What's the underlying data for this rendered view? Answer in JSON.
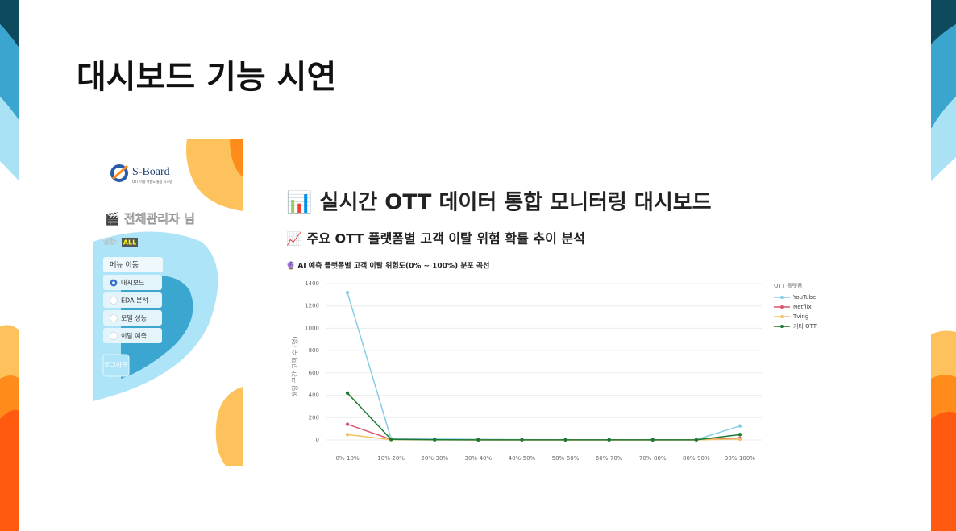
{
  "slide": {
    "title": "대시보드 기능 시연"
  },
  "sidebar": {
    "logo": "S-Board",
    "logo_sub": "OTT 이탈 위험도 통합 시스템",
    "user": "🎬 전체관리자 님",
    "role_label": "권한:",
    "role": "ALL",
    "menu_title": "메뉴 이동",
    "menu": [
      "대시보드",
      "EDA 분석",
      "모델 성능",
      "이탈 예측"
    ],
    "selected": 0,
    "logout": "로그아웃"
  },
  "dashboard": {
    "title": "📊 실시간 OTT 데이터 통합 모니터링 대시보드",
    "subtitle": "📈 주요 OTT 플랫폼별 고객 이탈 위험 확률 추이 분석"
  },
  "chart_data": {
    "type": "line",
    "title": "🔮 AI 예측 플랫폼별 고객 이탈 위험도(0% ~ 100%) 분포 곡선",
    "y_label": "해당 구간 고객 수 (명)",
    "legend_title": "OTT 플랫폼",
    "categories": [
      "0%-10%",
      "10%-20%",
      "20%-30%",
      "30%-40%",
      "40%-50%",
      "50%-60%",
      "60%-70%",
      "70%-80%",
      "80%-90%",
      "90%-100%"
    ],
    "series": [
      {
        "name": "YouTube",
        "color": "#86cde6",
        "values": [
          1320,
          10,
          8,
          5,
          3,
          2,
          2,
          2,
          3,
          125
        ]
      },
      {
        "name": "Netflix",
        "color": "#d9566c",
        "values": [
          140,
          5,
          2,
          1,
          1,
          1,
          1,
          1,
          1,
          15
        ]
      },
      {
        "name": "Tving",
        "color": "#f0c264",
        "values": [
          48,
          3,
          1,
          1,
          0,
          0,
          0,
          0,
          1,
          8
        ]
      },
      {
        "name": "기타 OTT",
        "color": "#1d7a33",
        "values": [
          420,
          5,
          2,
          1,
          1,
          1,
          1,
          1,
          1,
          48
        ]
      }
    ],
    "ylim": [
      0,
      1400
    ],
    "yticks": [
      0,
      200,
      400,
      600,
      800,
      1000,
      1200,
      1400
    ],
    "grid": true
  }
}
